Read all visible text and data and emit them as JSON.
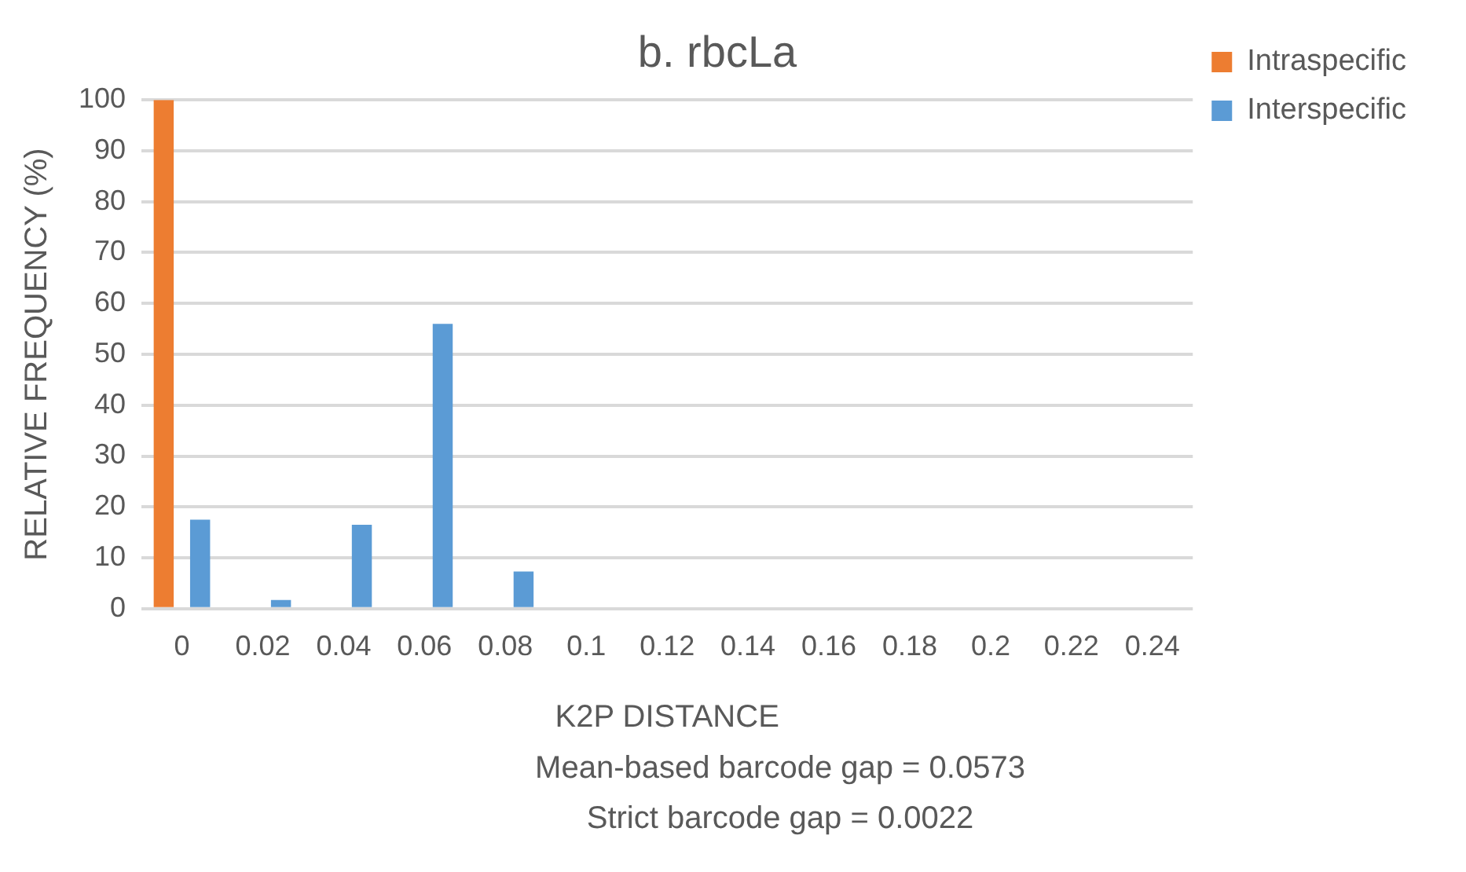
{
  "chart_data": {
    "type": "bar",
    "title": "b. rbcLa",
    "xlabel": "K2P DISTANCE",
    "ylabel": "RELATIVE FREQUENCY (%)",
    "categories": [
      "0",
      "0.02",
      "0.04",
      "0.06",
      "0.08",
      "0.1",
      "0.12",
      "0.14",
      "0.16",
      "0.18",
      "0.2",
      "0.22",
      "0.24"
    ],
    "series": [
      {
        "name": "Intraspecific",
        "color": "#ed7d31",
        "values": [
          100,
          0,
          0,
          0,
          0,
          0,
          0,
          0,
          0,
          0,
          0,
          0,
          0
        ]
      },
      {
        "name": "Interspecific",
        "color": "#5b9bd5",
        "values": [
          17.5,
          1.7,
          16.5,
          56,
          7.3,
          0,
          0,
          0,
          0,
          0,
          0,
          0,
          0
        ]
      }
    ],
    "ylim": [
      0,
      100
    ],
    "yticks": [
      0,
      10,
      20,
      30,
      40,
      50,
      60,
      70,
      80,
      90,
      100
    ],
    "grid": "y",
    "legend": "top right",
    "annotations": [
      "Mean-based barcode gap = 0.0573",
      "Strict barcode gap = 0.0022"
    ]
  }
}
